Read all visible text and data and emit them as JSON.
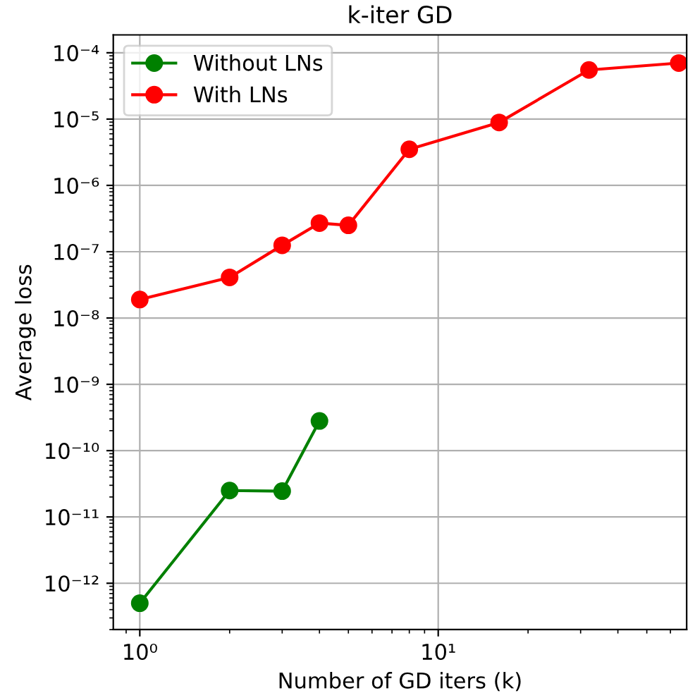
{
  "chart_data": {
    "type": "line",
    "title": "k-iter GD",
    "xlabel": "Number of GD iters (k)",
    "ylabel": "Average loss",
    "log": "xy",
    "grid": true,
    "legend": "top left",
    "marker": "circle",
    "line_style": "solid",
    "xlim": [
      0.815,
      68
    ],
    "ylim": [
      2e-13,
      0.000186
    ],
    "xticks": [
      {
        "value": 1,
        "label": "10⁰"
      },
      {
        "value": 10,
        "label": "10¹"
      }
    ],
    "yticks": [
      {
        "value": 1e-12,
        "label": "10⁻¹²"
      },
      {
        "value": 1e-11,
        "label": "10⁻¹¹"
      },
      {
        "value": 1e-10,
        "label": "10⁻¹⁰"
      },
      {
        "value": 1e-09,
        "label": "10⁻⁹"
      },
      {
        "value": 1e-08,
        "label": "10⁻⁸"
      },
      {
        "value": 1e-07,
        "label": "10⁻⁷"
      },
      {
        "value": 1e-06,
        "label": "10⁻⁶"
      },
      {
        "value": 1e-05,
        "label": "10⁻⁵"
      },
      {
        "value": 0.0001,
        "label": "10⁻⁴"
      }
    ],
    "series": [
      {
        "name": "Without LNs",
        "color": "#008000",
        "x": [
          1,
          2,
          3,
          4
        ],
        "values": [
          5e-13,
          2.5e-11,
          2.45e-11,
          2.8e-10
        ]
      },
      {
        "name": "With LNs",
        "color": "#ff0000",
        "x": [
          1,
          2,
          3,
          4,
          5,
          8,
          16,
          32,
          64
        ],
        "values": [
          1.9e-08,
          4.1e-08,
          1.25e-07,
          2.7e-07,
          2.5e-07,
          3.5e-06,
          8.9e-06,
          5.5e-05,
          7e-05
        ]
      }
    ]
  }
}
